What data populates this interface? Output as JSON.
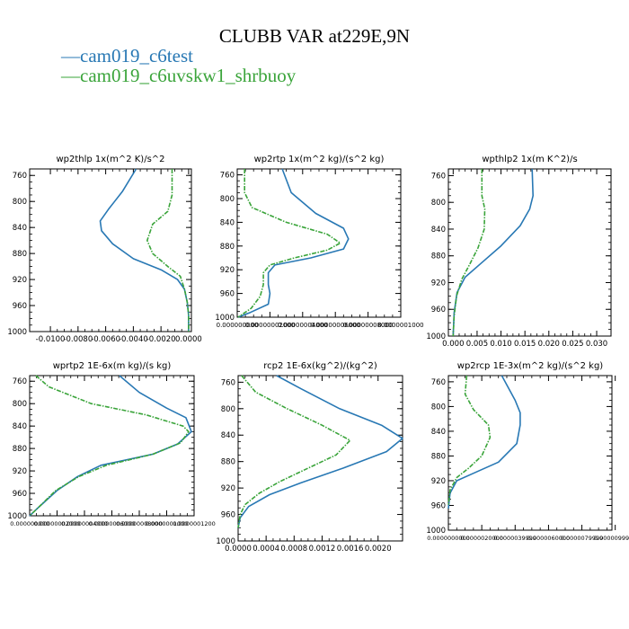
{
  "figure": {
    "title": "CLUBB VAR at229E,9N",
    "legend": [
      {
        "marker": "—",
        "name": "cam019_c6test",
        "color": "#2878b4"
      },
      {
        "marker": "—",
        "name": "cam019_c6uvskw1_shrbuoy",
        "color": "#3aa43a"
      }
    ]
  },
  "chart_data": [
    {
      "type": "line",
      "title": "wp2thlp  1x(m^2 K)/s^2",
      "ylim": [
        1000,
        750
      ],
      "yticks": [
        "760",
        "800",
        "840",
        "880",
        "920",
        "960",
        "1000"
      ],
      "xlim": [
        -0.0115,
        0.0002
      ],
      "xticks": [
        "-0.0100",
        "-0.0080",
        "-0.0060",
        "-0.0040",
        "-0.0020",
        "0.0000"
      ],
      "series": [
        {
          "name": "cam019_c6test",
          "color": "#2878b4",
          "points": [
            [
              -0.0038,
              750
            ],
            [
              -0.0048,
              785
            ],
            [
              -0.0058,
              812
            ],
            [
              -0.0064,
              830
            ],
            [
              -0.0063,
              845
            ],
            [
              -0.0055,
              865
            ],
            [
              -0.004,
              888
            ],
            [
              -0.002,
              905
            ],
            [
              -0.0008,
              920
            ],
            [
              -0.0003,
              935
            ],
            [
              -0.0001,
              955
            ],
            [
              0.0,
              975
            ],
            [
              0.0,
              1000
            ]
          ]
        },
        {
          "name": "cam019_c6uvskw1_shrbuoy",
          "color": "#3aa43a",
          "points": [
            [
              -0.0012,
              750
            ],
            [
              -0.0012,
              790
            ],
            [
              -0.0015,
              815
            ],
            [
              -0.0026,
              835
            ],
            [
              -0.003,
              860
            ],
            [
              -0.0026,
              880
            ],
            [
              -0.0015,
              900
            ],
            [
              -0.0006,
              915
            ],
            [
              -0.0003,
              935
            ],
            [
              -0.0001,
              955
            ],
            [
              0.0,
              975
            ],
            [
              0.0,
              1000
            ]
          ]
        }
      ]
    },
    {
      "type": "line",
      "title": "wp2rtp  1x(m^2 kg)/(s^2 kg)",
      "ylim": [
        1000,
        750
      ],
      "yticks": [
        "760",
        "800",
        "840",
        "880",
        "920",
        "960",
        "1000"
      ],
      "xlim": [
        0,
        1e-07
      ],
      "xticks": [
        "0.000000000",
        "0.00000002000",
        "0.00000004000",
        "0.00000006000",
        "0.00000008000",
        "0.0000001000"
      ],
      "series": [
        {
          "name": "cam019_c6test",
          "color": "#2878b4",
          "points": [
            [
              2.75e-08,
              750
            ],
            [
              3.3e-08,
              790
            ],
            [
              4.8e-08,
              825
            ],
            [
              6.5e-08,
              850
            ],
            [
              6.8e-08,
              868
            ],
            [
              6.5e-08,
              885
            ],
            [
              4.5e-08,
              900
            ],
            [
              2.3e-08,
              912
            ],
            [
              1.9e-08,
              925
            ],
            [
              1.9e-08,
              945
            ],
            [
              2e-08,
              960
            ],
            [
              1.9e-08,
              978
            ],
            [
              8e-09,
              992
            ],
            [
              5e-10,
              1000
            ]
          ]
        },
        {
          "name": "cam019_c6uvskw1_shrbuoy",
          "color": "#3aa43a",
          "points": [
            [
              4.5e-09,
              750
            ],
            [
              4.5e-09,
              790
            ],
            [
              9e-09,
              815
            ],
            [
              3e-08,
              840
            ],
            [
              5.5e-08,
              860
            ],
            [
              6.3e-08,
              875
            ],
            [
              5.5e-08,
              887
            ],
            [
              3.5e-08,
              900
            ],
            [
              2e-08,
              912
            ],
            [
              1.6e-08,
              925
            ],
            [
              1.6e-08,
              945
            ],
            [
              1.4e-08,
              965
            ],
            [
              8.5e-09,
              985
            ],
            [
              5e-10,
              1000
            ]
          ]
        }
      ]
    },
    {
      "type": "line",
      "title": "wpthlp2  1x(m K^2)/s",
      "ylim": [
        1000,
        750
      ],
      "yticks": [
        "760",
        "800",
        "840",
        "880",
        "920",
        "960",
        "1000"
      ],
      "xlim": [
        -0.001,
        0.033
      ],
      "xticks": [
        "0.000",
        "0.005",
        "0.010",
        "0.015",
        "0.020",
        "0.025",
        "0.030"
      ],
      "series": [
        {
          "name": "cam019_c6test",
          "color": "#2878b4",
          "points": [
            [
              0.0165,
              750
            ],
            [
              0.0167,
              790
            ],
            [
              0.016,
              810
            ],
            [
              0.014,
              835
            ],
            [
              0.01,
              865
            ],
            [
              0.006,
              890
            ],
            [
              0.0025,
              912
            ],
            [
              0.0008,
              935
            ],
            [
              0.0002,
              965
            ],
            [
              0.0,
              1000
            ]
          ]
        },
        {
          "name": "cam019_c6uvskw1_shrbuoy",
          "color": "#3aa43a",
          "points": [
            [
              0.006,
              750
            ],
            [
              0.006,
              790
            ],
            [
              0.0066,
              810
            ],
            [
              0.0065,
              840
            ],
            [
              0.0052,
              868
            ],
            [
              0.0035,
              892
            ],
            [
              0.0018,
              915
            ],
            [
              0.0007,
              940
            ],
            [
              0.0002,
              970
            ],
            [
              0.0,
              1000
            ]
          ]
        }
      ]
    },
    {
      "type": "line",
      "title": "wprtp2  1E-6x(m kg)/(s kg)",
      "ylim": [
        1000,
        750
      ],
      "yticks": [
        "760",
        "800",
        "840",
        "880",
        "920",
        "960",
        "1000"
      ],
      "xlim": [
        0,
        1.2e-07
      ],
      "xticks": [
        "0.000000000",
        "0.00000002000",
        "0.00000004000",
        "0.00000006000",
        "0.00000008000",
        "0.0000001000",
        "0.0000001200"
      ],
      "series": [
        {
          "name": "cam019_c6test",
          "color": "#2878b4",
          "points": [
            [
              6.55e-08,
              750
            ],
            [
              8e-08,
              780
            ],
            [
              1e-07,
              808
            ],
            [
              1.14e-07,
              825
            ],
            [
              1.18e-07,
              850
            ],
            [
              1.08e-07,
              872
            ],
            [
              9e-08,
              890
            ],
            [
              5.2e-08,
              910
            ],
            [
              3.5e-08,
              930
            ],
            [
              2e-08,
              955
            ],
            [
              6.5e-09,
              985
            ],
            [
              0.0,
              1000
            ]
          ]
        },
        {
          "name": "cam019_c6uvskw1_shrbuoy",
          "color": "#3aa43a",
          "points": [
            [
              4.5e-09,
              750
            ],
            [
              1.4e-08,
              770
            ],
            [
              4.5e-08,
              800
            ],
            [
              8.5e-08,
              820
            ],
            [
              1.12e-07,
              840
            ],
            [
              1.16e-07,
              850
            ],
            [
              1.1e-07,
              870
            ],
            [
              9e-08,
              890
            ],
            [
              5.6e-08,
              910
            ],
            [
              3.6e-08,
              930
            ],
            [
              1.9e-08,
              955
            ],
            [
              6.5e-09,
              985
            ],
            [
              0.0,
              1000
            ]
          ]
        }
      ]
    },
    {
      "type": "line",
      "title": "rcp2  1E-6x(kg^2)/(kg^2)",
      "ylim": [
        1000,
        750
      ],
      "yticks": [
        "760",
        "800",
        "840",
        "880",
        "920",
        "960",
        "1000"
      ],
      "xlim": [
        0,
        0.00235
      ],
      "xticks": [
        "0.0000",
        "0.0004",
        "0.0008",
        "0.0012",
        "0.0016",
        "0.0020"
      ],
      "series": [
        {
          "name": "cam019_c6test",
          "color": "#2878b4",
          "points": [
            [
              0.00055,
              750
            ],
            [
              0.0009,
              770
            ],
            [
              0.00145,
              800
            ],
            [
              0.00205,
              825
            ],
            [
              0.00235,
              845
            ],
            [
              0.00212,
              865
            ],
            [
              0.0015,
              890
            ],
            [
              0.0009,
              912
            ],
            [
              0.00045,
              930
            ],
            [
              0.00015,
              948
            ],
            [
              3e-05,
              965
            ],
            [
              0.0,
              980
            ]
          ]
        },
        {
          "name": "cam019_c6uvskw1_shrbuoy",
          "color": "#3aa43a",
          "points": [
            [
              5e-05,
              750
            ],
            [
              0.00025,
              775
            ],
            [
              0.0007,
              800
            ],
            [
              0.0012,
              825
            ],
            [
              0.0016,
              848
            ],
            [
              0.0014,
              870
            ],
            [
              0.001,
              890
            ],
            [
              0.0006,
              910
            ],
            [
              0.0003,
              928
            ],
            [
              0.0001,
              945
            ],
            [
              3e-05,
              960
            ],
            [
              0.0,
              980
            ]
          ]
        }
      ]
    },
    {
      "type": "line",
      "title": "wp2rcp  1E-3x(m^2 kg)/(s^2 kg)",
      "ylim": [
        1000,
        750
      ],
      "yticks": [
        "760",
        "800",
        "840",
        "880",
        "920",
        "960",
        "1000"
      ],
      "xlim": [
        0,
        9.8e-06
      ],
      "xticks": [
        "0.0000000000",
        "0.0000020000",
        "0.0000039999",
        "0.0000060000",
        "0.0000079999",
        "0.0000099980"
      ],
      "series": [
        {
          "name": "cam019_c6test",
          "color": "#2878b4",
          "points": [
            [
              3.2e-06,
              750
            ],
            [
              4e-06,
              790
            ],
            [
              4.3e-06,
              810
            ],
            [
              4.3e-06,
              830
            ],
            [
              4.1e-06,
              860
            ],
            [
              3e-06,
              890
            ],
            [
              1.5e-06,
              908
            ],
            [
              5e-07,
              920
            ],
            [
              1e-07,
              940
            ],
            [
              0.0,
              965
            ]
          ]
        },
        {
          "name": "cam019_c6uvskw1_shrbuoy",
          "color": "#3aa43a",
          "points": [
            [
              1.1e-06,
              750
            ],
            [
              1e-06,
              780
            ],
            [
              1.5e-06,
              805
            ],
            [
              2.4e-06,
              830
            ],
            [
              2.5e-06,
              850
            ],
            [
              2e-06,
              880
            ],
            [
              1.2e-06,
              900
            ],
            [
              5e-07,
              915
            ],
            [
              1e-07,
              935
            ],
            [
              0.0,
              960
            ]
          ]
        }
      ]
    }
  ]
}
